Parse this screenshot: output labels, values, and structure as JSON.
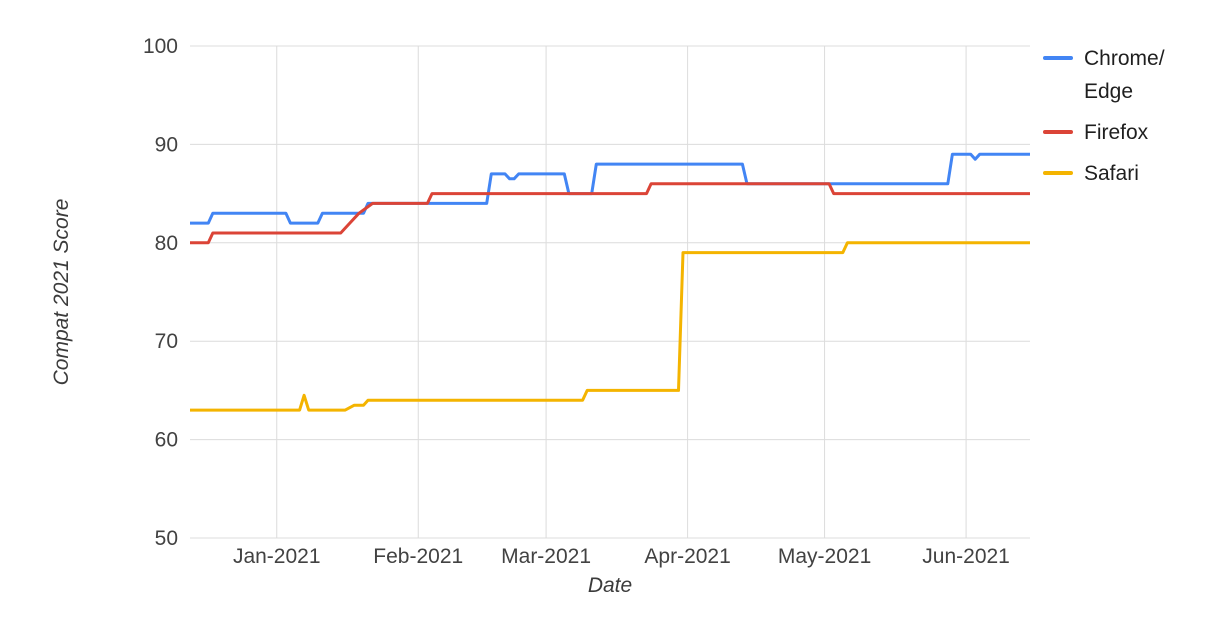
{
  "chart_data": {
    "type": "line",
    "title": "",
    "xlabel": "Date",
    "ylabel": "Compat 2021 Score",
    "ylim": [
      50,
      100
    ],
    "y_ticks": [
      50,
      60,
      70,
      80,
      90,
      100
    ],
    "x_domain": [
      "2020-12-13",
      "2021-06-15"
    ],
    "x_ticks": [
      {
        "date": "2021-01-01",
        "label": "Jan-2021"
      },
      {
        "date": "2021-02-01",
        "label": "Feb-2021"
      },
      {
        "date": "2021-03-01",
        "label": "Mar-2021"
      },
      {
        "date": "2021-04-01",
        "label": "Apr-2021"
      },
      {
        "date": "2021-05-01",
        "label": "May-2021"
      },
      {
        "date": "2021-06-01",
        "label": "Jun-2021"
      }
    ],
    "grid": true,
    "legend_position": "right",
    "series": [
      {
        "name": "Chrome/Edge",
        "color": "#4285F4",
        "points": [
          [
            "2020-12-13",
            82
          ],
          [
            "2020-12-17",
            82
          ],
          [
            "2020-12-18",
            83
          ],
          [
            "2021-01-03",
            83
          ],
          [
            "2021-01-04",
            82
          ],
          [
            "2021-01-10",
            82
          ],
          [
            "2021-01-11",
            83
          ],
          [
            "2021-01-20",
            83
          ],
          [
            "2021-01-21",
            84
          ],
          [
            "2021-02-16",
            84
          ],
          [
            "2021-02-17",
            87
          ],
          [
            "2021-02-20",
            87
          ],
          [
            "2021-02-21",
            86.5
          ],
          [
            "2021-02-22",
            86.5
          ],
          [
            "2021-02-23",
            87
          ],
          [
            "2021-03-05",
            87
          ],
          [
            "2021-03-06",
            85
          ],
          [
            "2021-03-11",
            85
          ],
          [
            "2021-03-12",
            88
          ],
          [
            "2021-04-13",
            88
          ],
          [
            "2021-04-14",
            86
          ],
          [
            "2021-05-28",
            86
          ],
          [
            "2021-05-29",
            89
          ],
          [
            "2021-06-02",
            89
          ],
          [
            "2021-06-03",
            88.5
          ],
          [
            "2021-06-04",
            89
          ],
          [
            "2021-06-15",
            89
          ]
        ]
      },
      {
        "name": "Firefox",
        "color": "#DB4437",
        "points": [
          [
            "2020-12-13",
            80
          ],
          [
            "2020-12-17",
            80
          ],
          [
            "2020-12-18",
            81
          ],
          [
            "2021-01-15",
            81
          ],
          [
            "2021-01-17",
            82
          ],
          [
            "2021-01-19",
            83
          ],
          [
            "2021-01-22",
            84
          ],
          [
            "2021-02-03",
            84
          ],
          [
            "2021-02-04",
            85
          ],
          [
            "2021-03-23",
            85
          ],
          [
            "2021-03-24",
            86
          ],
          [
            "2021-05-02",
            86
          ],
          [
            "2021-05-03",
            85
          ],
          [
            "2021-06-15",
            85
          ]
        ]
      },
      {
        "name": "Safari",
        "color": "#F4B400",
        "points": [
          [
            "2020-12-13",
            63
          ],
          [
            "2021-01-06",
            63
          ],
          [
            "2021-01-07",
            64.5
          ],
          [
            "2021-01-08",
            63
          ],
          [
            "2021-01-16",
            63
          ],
          [
            "2021-01-18",
            63.5
          ],
          [
            "2021-01-20",
            63.5
          ],
          [
            "2021-01-21",
            64
          ],
          [
            "2021-03-09",
            64
          ],
          [
            "2021-03-10",
            65
          ],
          [
            "2021-03-30",
            65
          ],
          [
            "2021-03-31",
            79
          ],
          [
            "2021-05-05",
            79
          ],
          [
            "2021-05-06",
            80
          ],
          [
            "2021-06-15",
            80
          ]
        ]
      }
    ]
  },
  "colors": {
    "background": "#ffffff",
    "grid": "#dcdcdc",
    "axis_text": "#424242"
  }
}
